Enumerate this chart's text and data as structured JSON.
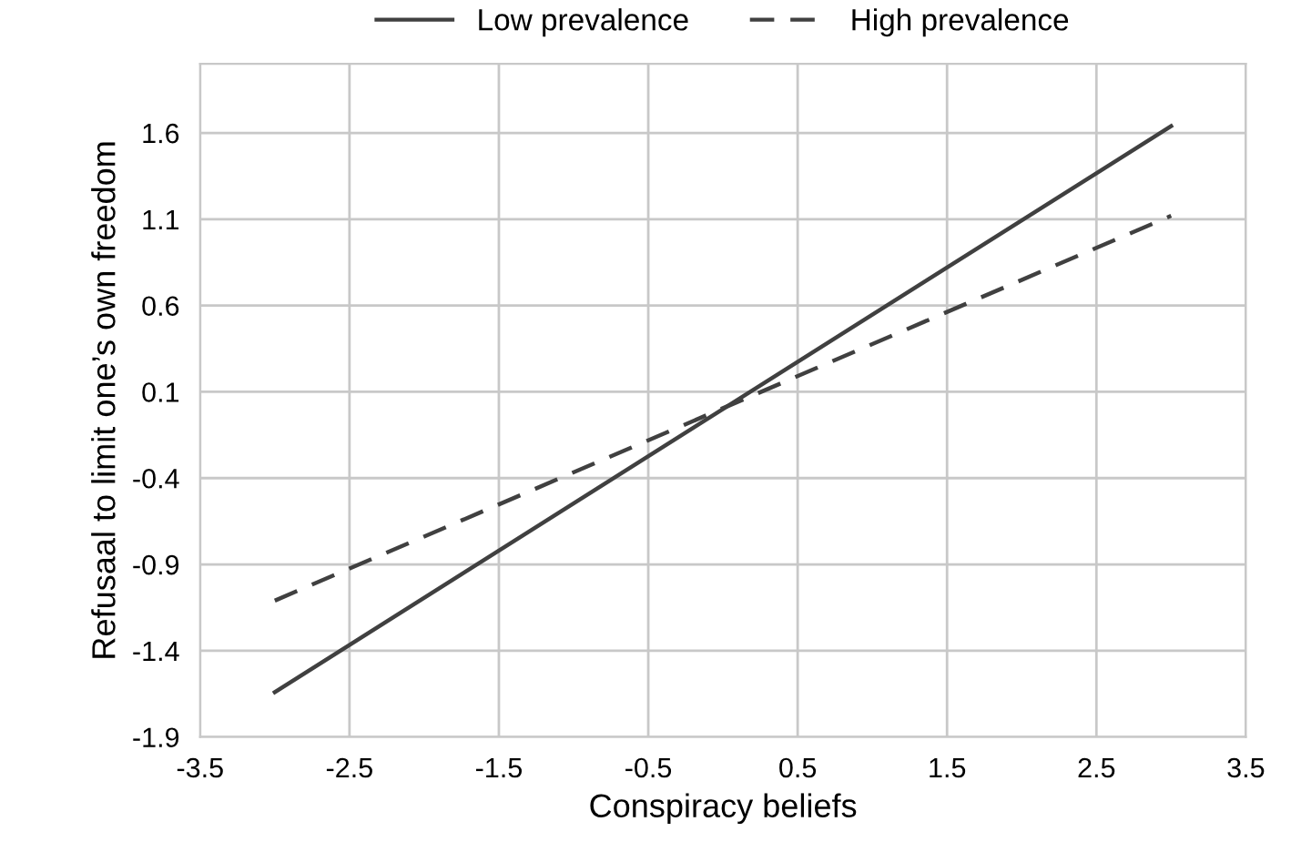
{
  "chart_data": {
    "type": "line",
    "xlabel": "Conspiracy beliefs",
    "ylabel": "Refusaal to limit one’s own freedom",
    "series": [
      {
        "name": "Low prevalence",
        "color": "#404040",
        "line_style": "solid",
        "values": [
          -1.64,
          1.64
        ]
      },
      {
        "name": "High prevalence",
        "color": "#404040",
        "line_style": "dashed",
        "values": [
          -1.11,
          1.12
        ]
      }
    ],
    "x": [
      -3,
      3
    ],
    "xlim": [
      -3.5,
      3.5
    ],
    "xticks": [
      -3.5,
      -2.5,
      -1.5,
      -0.5,
      0.5,
      1.5,
      2.5,
      3.5
    ],
    "ylim": [
      -1.9,
      2.0
    ],
    "yticks": [
      -1.9,
      -1.4,
      -0.9,
      -0.4,
      0.1,
      0.6,
      1.1,
      1.6
    ],
    "grid": true,
    "legend": "top",
    "marker": "none"
  }
}
